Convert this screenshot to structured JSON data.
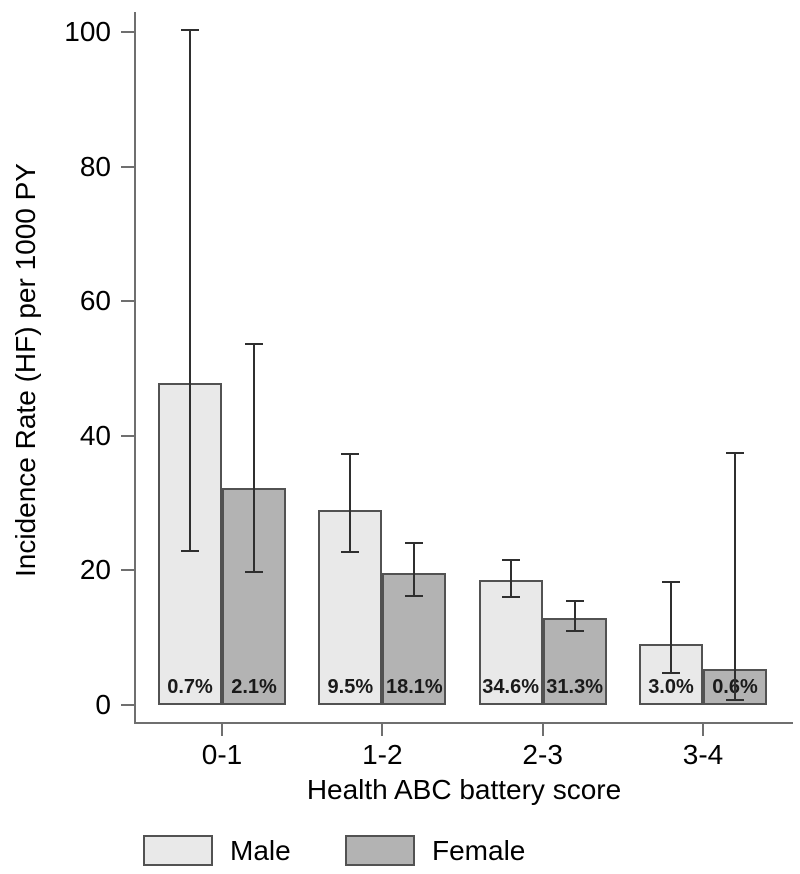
{
  "figure": {
    "background": "#ffffff"
  },
  "chart_data": {
    "type": "bar",
    "title": "",
    "xlabel": "Health ABC battery score",
    "ylabel": "Incidence Rate (HF) per 1000 PY",
    "categories": [
      "0-1",
      "1-2",
      "2-3",
      "3-4"
    ],
    "y_ticks": [
      0,
      20,
      40,
      60,
      80,
      100
    ],
    "ylim": [
      0,
      100
    ],
    "grid": false,
    "legend_position": "bottom",
    "error_bars": true,
    "series": [
      {
        "name": "Male",
        "color": "#e9e9e9",
        "values": [
          47.9,
          29.0,
          18.6,
          9.1
        ],
        "ci_low": [
          22.9,
          22.8,
          16.0,
          4.8
        ],
        "ci_high": [
          100.3,
          37.3,
          21.6,
          18.3
        ],
        "bar_labels": [
          "0.7%",
          "9.5%",
          "34.6%",
          "3.0%"
        ]
      },
      {
        "name": "Female",
        "color": "#b3b3b3",
        "values": [
          32.3,
          19.6,
          13.0,
          5.3
        ],
        "ci_low": [
          19.7,
          16.2,
          11.0,
          0.8
        ],
        "ci_high": [
          53.7,
          24.1,
          15.4,
          37.4
        ],
        "bar_labels": [
          "2.1%",
          "18.1%",
          "31.3%",
          "0.6%"
        ]
      }
    ],
    "colors": {
      "bar_border": "#525252",
      "error_bar": "#2f2f2f",
      "axis": "#6f6f6f",
      "text": "#000000"
    }
  }
}
